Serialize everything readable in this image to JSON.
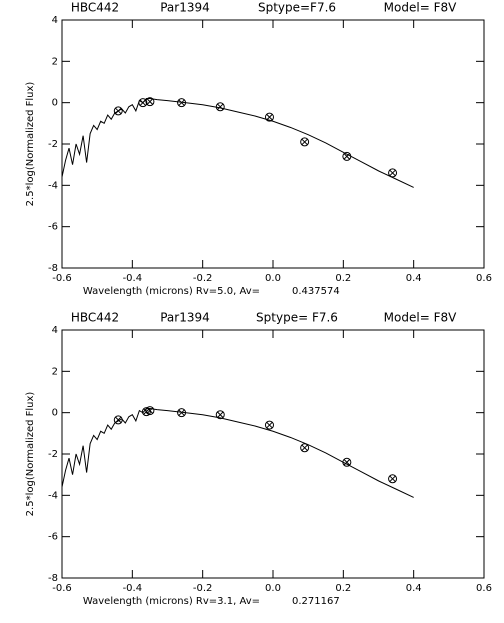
{
  "chart_data": [
    {
      "type": "line",
      "header": [
        "HBC442",
        "Par1394",
        "Sptype=F7.6",
        "Model= F8V"
      ],
      "x_label": "Wavelength (microns) Rv=5.0, Av=",
      "x_label_value": "0.437574",
      "y_label": "2.5*log(Normalized Flux)",
      "xlim": [
        -0.6,
        0.6
      ],
      "ylim": [
        -8,
        4
      ],
      "xticks": [
        -0.6,
        -0.4,
        -0.2,
        {
          "value": 0,
          "label": "0.0"
        },
        0.2,
        0.4,
        0.6
      ],
      "yticks": [
        -8,
        -6,
        -4,
        -2,
        0,
        2,
        4
      ],
      "series": [
        {
          "type": "line",
          "color": "#000000",
          "x": [
            -0.6,
            -0.59,
            -0.58,
            -0.57,
            -0.56,
            -0.55,
            -0.54,
            -0.53,
            -0.52,
            -0.51,
            -0.5,
            -0.49,
            -0.48,
            -0.47,
            -0.46,
            -0.45,
            -0.44,
            -0.43,
            -0.42,
            -0.41,
            -0.4,
            -0.39,
            -0.38,
            -0.37,
            -0.36,
            -0.35,
            -0.33,
            -0.3,
            -0.25,
            -0.2,
            -0.15,
            -0.1,
            -0.05,
            0,
            0.05,
            0.1,
            0.15,
            0.2,
            0.25,
            0.3,
            0.35,
            0.4
          ],
          "values": [
            -3.6,
            -2.8,
            -2.2,
            -3.0,
            -2.0,
            -2.5,
            -1.6,
            -2.9,
            -1.5,
            -1.1,
            -1.3,
            -0.9,
            -1.0,
            -0.6,
            -0.8,
            -0.5,
            -0.4,
            -0.3,
            -0.5,
            -0.2,
            -0.1,
            -0.4,
            0.1,
            0.0,
            0.2,
            0.2,
            0.15,
            0.1,
            0.0,
            -0.1,
            -0.25,
            -0.45,
            -0.65,
            -0.9,
            -1.2,
            -1.55,
            -1.95,
            -2.4,
            -2.85,
            -3.3,
            -3.7,
            -4.1
          ]
        },
        {
          "type": "scatter",
          "color": "#000000",
          "x": [
            -0.44,
            -0.37,
            -0.35,
            -0.26,
            -0.15,
            -0.01,
            0.09,
            0.21,
            0.34
          ],
          "values": [
            -0.4,
            0.0,
            0.05,
            0.0,
            -0.2,
            -0.7,
            -1.9,
            -2.6,
            -3.4
          ]
        }
      ]
    },
    {
      "type": "line",
      "header": [
        "HBC442",
        "Par1394",
        "Sptype= F7.6",
        "Model= F8V"
      ],
      "x_label": "Wavelength (microns) Rv=3.1,  Av=",
      "x_label_value": "0.271167",
      "y_label": "2.5*log(Normalized Flux)",
      "xlim": [
        -0.6,
        0.6
      ],
      "ylim": [
        -8,
        4
      ],
      "xticks": [
        -0.6,
        -0.4,
        -0.2,
        {
          "value": 0,
          "label": "0.0"
        },
        0.2,
        0.4,
        0.6
      ],
      "yticks": [
        -8,
        -6,
        -4,
        -2,
        0,
        2,
        4
      ],
      "series": [
        {
          "type": "line",
          "color": "#000000",
          "x": [
            -0.6,
            -0.59,
            -0.58,
            -0.57,
            -0.56,
            -0.55,
            -0.54,
            -0.53,
            -0.52,
            -0.51,
            -0.5,
            -0.49,
            -0.48,
            -0.47,
            -0.46,
            -0.45,
            -0.44,
            -0.43,
            -0.42,
            -0.41,
            -0.4,
            -0.39,
            -0.38,
            -0.37,
            -0.36,
            -0.35,
            -0.33,
            -0.3,
            -0.25,
            -0.2,
            -0.15,
            -0.1,
            -0.05,
            0,
            0.05,
            0.1,
            0.15,
            0.2,
            0.25,
            0.3,
            0.35,
            0.4
          ],
          "values": [
            -3.6,
            -2.8,
            -2.2,
            -3.0,
            -2.0,
            -2.5,
            -1.6,
            -2.9,
            -1.5,
            -1.1,
            -1.3,
            -0.9,
            -1.0,
            -0.6,
            -0.8,
            -0.5,
            -0.4,
            -0.3,
            -0.5,
            -0.2,
            -0.1,
            -0.4,
            0.1,
            0.0,
            0.2,
            0.2,
            0.15,
            0.1,
            0.0,
            -0.1,
            -0.25,
            -0.45,
            -0.65,
            -0.9,
            -1.2,
            -1.55,
            -1.95,
            -2.4,
            -2.85,
            -3.3,
            -3.7,
            -4.1
          ]
        },
        {
          "type": "scatter",
          "color": "#000000",
          "x": [
            -0.44,
            -0.36,
            -0.35,
            -0.26,
            -0.15,
            -0.01,
            0.09,
            0.21,
            0.34
          ],
          "values": [
            -0.35,
            0.05,
            0.1,
            0.0,
            -0.1,
            -0.6,
            -1.7,
            -2.4,
            -3.2
          ]
        }
      ]
    }
  ]
}
